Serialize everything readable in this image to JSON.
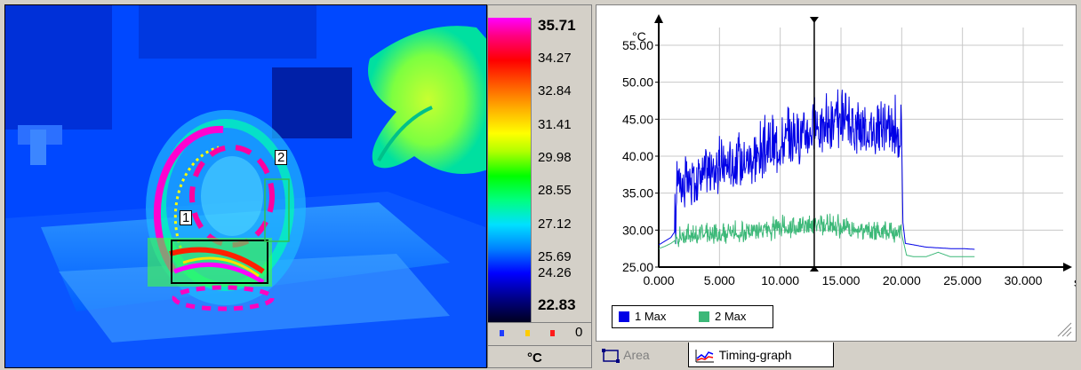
{
  "thermal_view": {
    "roi_labels": [
      "1",
      "2"
    ]
  },
  "scale": {
    "ticks": [
      "35.71",
      "34.27",
      "32.84",
      "31.41",
      "29.98",
      "28.55",
      "27.12",
      "25.69",
      "24.26",
      "22.83"
    ],
    "unit": "°C",
    "dot_count": "0",
    "dot_colors": [
      "#1f3dff",
      "#ffcc00",
      "#ff1a1a"
    ]
  },
  "tabs": {
    "area_label": "Area",
    "timing_label": "Timing-graph"
  },
  "chart_data": {
    "type": "line",
    "ylabel": "°C",
    "xlabel": "s",
    "xlim": [
      0,
      30
    ],
    "ylim": [
      25,
      55
    ],
    "x_ticks": [
      "0.000",
      "5.000",
      "10.000",
      "15.000",
      "20.000",
      "25.000",
      "30.000"
    ],
    "y_ticks": [
      "25.00",
      "30.00",
      "35.00",
      "40.00",
      "45.00",
      "50.00",
      "55.00"
    ],
    "cursor_x": 12.8,
    "grid": true,
    "legend_position": "bottom-left",
    "series": [
      {
        "name": "1 Max",
        "color": "#0000e6",
        "x": [
          0,
          0.5,
          1.0,
          1.4,
          1.5,
          2,
          3,
          4,
          5,
          6,
          7,
          8,
          9,
          10,
          11,
          12,
          12.8,
          13,
          14,
          15,
          16,
          17,
          18,
          19,
          20,
          20.1,
          20.3,
          21,
          22,
          23,
          24,
          25,
          26
        ],
        "y": [
          28,
          28.5,
          29,
          30,
          37,
          35,
          36,
          37,
          37.5,
          38,
          38.5,
          39,
          40,
          40.5,
          41.5,
          42,
          43,
          43,
          43,
          43.5,
          43,
          43,
          42.5,
          42.5,
          42,
          31,
          28.2,
          28,
          27.7,
          27.6,
          27.5,
          27.5,
          27.4
        ]
      },
      {
        "name": "2 Max",
        "color": "#3cb878",
        "x": [
          0,
          0.5,
          1,
          1.5,
          2,
          3,
          4,
          5,
          6,
          7,
          8,
          9,
          10,
          11,
          12,
          13,
          14,
          15,
          16,
          17,
          18,
          19,
          20,
          20.2,
          20.4,
          21,
          22,
          23,
          24,
          25,
          26
        ],
        "y": [
          27.5,
          27.8,
          28.2,
          28.8,
          29,
          29,
          29.2,
          29.2,
          29.3,
          29.3,
          29.5,
          29.6,
          29.8,
          30,
          30.2,
          30.5,
          30.2,
          30,
          29.8,
          29.8,
          29.6,
          29.5,
          29.4,
          28,
          26.6,
          26.4,
          26.4,
          27,
          26.4,
          26.4,
          26.4
        ]
      }
    ]
  }
}
